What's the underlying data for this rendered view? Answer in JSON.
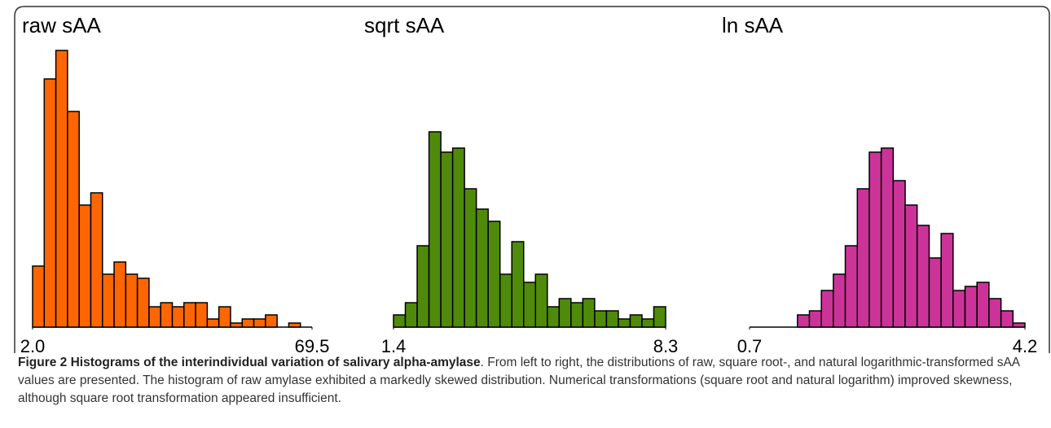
{
  "chart_data": [
    {
      "type": "histogram",
      "title": "raw sAA",
      "color": "#ff6600",
      "bins": [
        2.0,
        4.8125,
        7.625,
        10.4375,
        13.25,
        16.0625,
        18.875,
        21.6875,
        24.5,
        27.3125,
        30.125,
        32.9375,
        35.75,
        38.5625,
        41.375,
        44.1875,
        47.0,
        49.8125,
        52.625,
        55.4375,
        58.25,
        61.0625,
        63.875,
        66.6875,
        69.5
      ],
      "values": [
        15,
        61,
        68,
        53,
        30,
        33,
        13,
        16,
        13,
        12,
        5,
        6,
        5,
        6,
        6,
        2,
        5,
        1,
        2,
        2,
        3,
        0,
        1,
        0
      ],
      "xlim": [
        2.0,
        69.5
      ],
      "xticks": [
        {
          "value": 2.0,
          "label": "2.0"
        },
        69.5
      ],
      "ylim": [
        0,
        70
      ]
    },
    {
      "type": "histogram",
      "title": "sqrt sAA",
      "color": "#4f8a0b",
      "bins": [
        1.4,
        1.7,
        2.0,
        2.3,
        2.6,
        2.9,
        3.2,
        3.5,
        3.8,
        4.1,
        4.4,
        4.7,
        5.0,
        5.3,
        5.6,
        5.9,
        6.2,
        6.5,
        6.8,
        7.1,
        7.4,
        7.7,
        8.0,
        8.3
      ],
      "values": [
        3,
        6,
        20,
        48,
        43,
        44,
        34,
        29,
        26,
        13,
        21,
        11,
        13,
        5,
        7,
        6,
        7,
        4,
        4,
        2,
        3,
        2,
        5
      ],
      "xlim": [
        1.4,
        8.3
      ],
      "xticks": [
        1.4,
        8.3
      ],
      "ylim": [
        0,
        70
      ]
    },
    {
      "type": "histogram",
      "title": "ln sAA",
      "color": "#cc3399",
      "bins": [
        0.7,
        0.852,
        1.004,
        1.157,
        1.309,
        1.461,
        1.613,
        1.765,
        1.917,
        2.07,
        2.222,
        2.374,
        2.526,
        2.678,
        2.83,
        2.983,
        3.135,
        3.287,
        3.439,
        3.591,
        3.743,
        3.896,
        4.048,
        4.2
      ],
      "values": [
        0,
        0,
        0,
        0,
        3,
        4,
        9,
        13,
        20,
        34,
        43,
        44,
        36,
        30,
        25,
        17,
        23,
        9,
        10,
        11,
        7,
        4,
        1
      ],
      "xlim": [
        0.7,
        4.2
      ],
      "xticks": [
        0.7,
        4.2
      ],
      "ylim": [
        0,
        70
      ]
    }
  ],
  "caption": {
    "title": "Figure 2 Histograms of the interindividual variation of salivary alpha-amylase",
    "text": ". From left to right, the distributions of raw, square root-, and natural logarithmic-transformed sAA values are presented. The histogram of raw amylase exhibited a markedly skewed distribution. Numerical transformations (square root and natural logarithm) improved skewness, although square root transformation appeared insufficient."
  }
}
